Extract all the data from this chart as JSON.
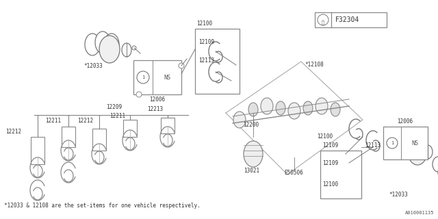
{
  "bg_color": "#ffffff",
  "line_color": "#777777",
  "dark_color": "#333333",
  "title_box": "F32304",
  "footer_text": "*12033 & 12108 are the set-items for one vehicle respectively.",
  "doc_number": "A010001135"
}
